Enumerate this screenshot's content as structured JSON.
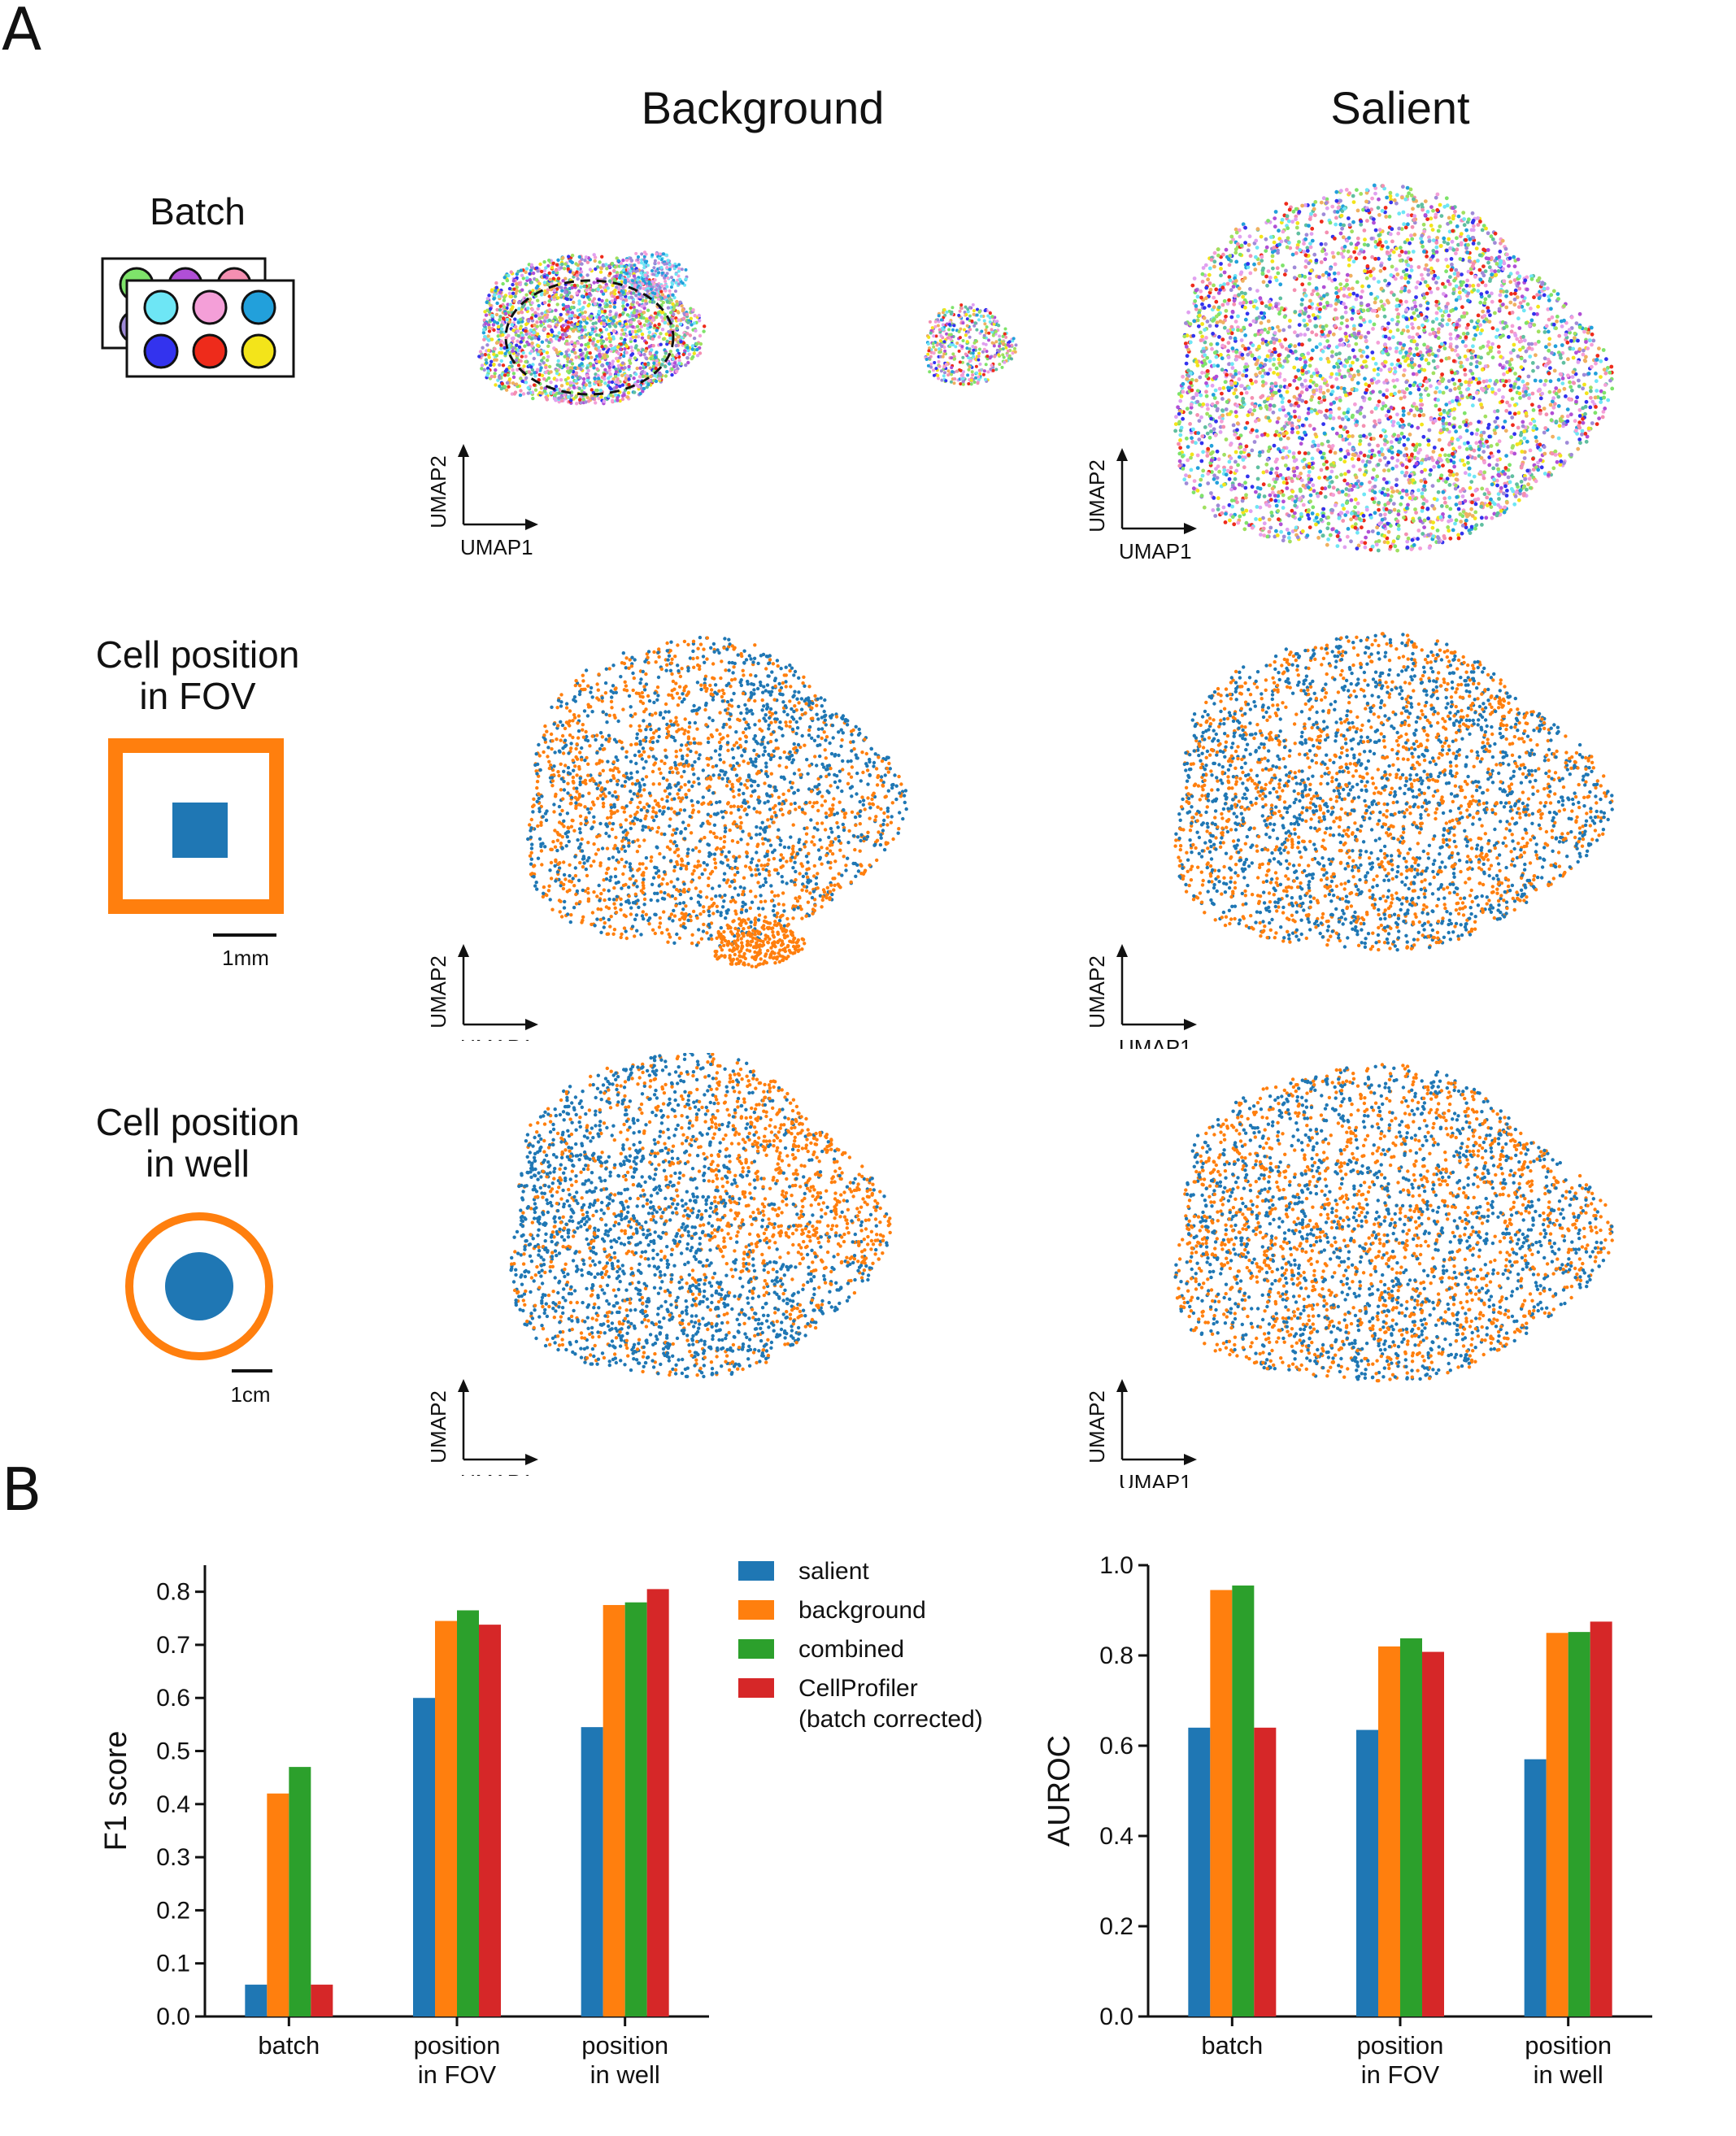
{
  "panel_labels": [
    "A",
    "B"
  ],
  "column_titles": [
    "Background",
    "Salient"
  ],
  "rows": [
    {
      "id": "batch",
      "title_lines": [
        "Batch"
      ],
      "scale_label": ""
    },
    {
      "id": "fov",
      "title_lines": [
        "Cell position",
        "in FOV"
      ],
      "scale_label": "1mm"
    },
    {
      "id": "well",
      "title_lines": [
        "Cell position",
        "in well"
      ],
      "scale_label": "1cm"
    }
  ],
  "umap_axes": {
    "x": "UMAP1",
    "y": "UMAP2"
  },
  "colors": {
    "salient": "#1f77b4",
    "background": "#ff7f0e",
    "combined": "#2ca02c",
    "cellprofiler": "#d62728",
    "well_colors": [
      "#7ee36a",
      "#b04fd6",
      "#f48fb1",
      "#9f8ad8",
      "#6ee6f5",
      "#f49fd8",
      "#22a0db",
      "#3333ee",
      "#ee2b1b",
      "#f3e41a"
    ]
  },
  "legend": {
    "entries": [
      {
        "label_lines": [
          "salient"
        ],
        "color": "#1f77b4"
      },
      {
        "label_lines": [
          "background"
        ],
        "color": "#ff7f0e"
      },
      {
        "label_lines": [
          "combined"
        ],
        "color": "#2ca02c"
      },
      {
        "label_lines": [
          "CellProfiler",
          "(batch corrected)"
        ],
        "color": "#d62728"
      }
    ]
  },
  "chart_data": [
    {
      "type": "bar",
      "categories": [
        [
          "batch"
        ],
        [
          "position",
          "in FOV"
        ],
        [
          "position",
          "in well"
        ]
      ],
      "series": [
        {
          "name": "salient",
          "values": [
            0.06,
            0.6,
            0.545
          ]
        },
        {
          "name": "background",
          "values": [
            0.42,
            0.745,
            0.775
          ]
        },
        {
          "name": "combined",
          "values": [
            0.47,
            0.765,
            0.78
          ]
        },
        {
          "name": "CellProfiler",
          "values": [
            0.06,
            0.738,
            0.805
          ]
        }
      ],
      "ylabel": "F1 score",
      "ylim": [
        0,
        0.85
      ],
      "yticks": [
        "0.0",
        "0.1",
        "0.2",
        "0.3",
        "0.4",
        "0.5",
        "0.6",
        "0.7",
        "0.8"
      ],
      "ytick_values": [
        0,
        0.1,
        0.2,
        0.3,
        0.4,
        0.5,
        0.6,
        0.7,
        0.8
      ],
      "grid": false
    },
    {
      "type": "bar",
      "categories": [
        [
          "batch"
        ],
        [
          "position",
          "in FOV"
        ],
        [
          "position",
          "in well"
        ]
      ],
      "series": [
        {
          "name": "salient",
          "values": [
            0.64,
            0.635,
            0.57
          ]
        },
        {
          "name": "background",
          "values": [
            0.945,
            0.82,
            0.85
          ]
        },
        {
          "name": "combined",
          "values": [
            0.955,
            0.838,
            0.852
          ]
        },
        {
          "name": "CellProfiler",
          "values": [
            0.64,
            0.808,
            0.875
          ]
        }
      ],
      "ylabel": "AUROC",
      "ylim": [
        0,
        1.0
      ],
      "yticks": [
        "0.0",
        "0.2",
        "0.4",
        "0.6",
        "0.8",
        "1.0"
      ],
      "ytick_values": [
        0,
        0.2,
        0.4,
        0.6,
        0.8,
        1.0
      ],
      "grid": false
    }
  ]
}
